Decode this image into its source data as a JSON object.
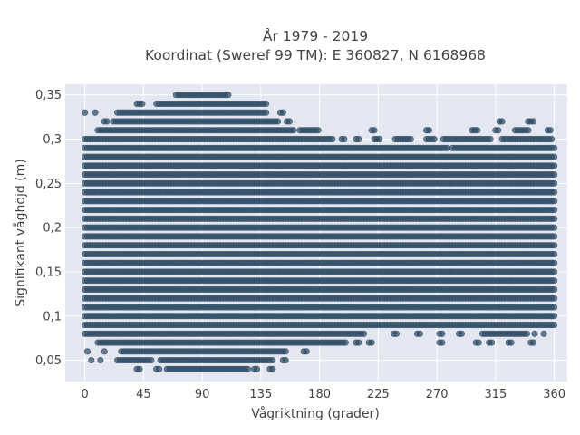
{
  "chart_data": {
    "type": "scatter",
    "title_lines": [
      "År 1979 - 2019",
      "Koordinat (Sweref 99 TM): E 360827, N 6168968"
    ],
    "xlabel": "Vågriktning (grader)",
    "ylabel": "Signifikant våghöjd (m)",
    "xlim": [
      -15,
      370
    ],
    "ylim": [
      0.026,
      0.362
    ],
    "x_ticks": [
      0,
      45,
      90,
      135,
      180,
      225,
      270,
      315,
      360
    ],
    "x_tick_labels": [
      "0",
      "45",
      "90",
      "135",
      "180",
      "225",
      "270",
      "315",
      "360"
    ],
    "y_ticks": [
      0.05,
      0.1,
      0.15,
      0.2,
      0.25,
      0.3,
      0.35
    ],
    "y_tick_labels": [
      "0,05",
      "0,1",
      "0,15",
      "0,2",
      "0,25",
      "0,3",
      "0,35"
    ],
    "grid": true,
    "background_color": "#e5e7f0",
    "marker_color": "#2f4e66",
    "x_step": 2,
    "bands": [
      {
        "y": 0.04,
        "x_ranges": [
          [
            40,
            42
          ],
          [
            55,
            58
          ],
          [
            63,
            125
          ],
          [
            130,
            132
          ],
          [
            142,
            144
          ]
        ]
      },
      {
        "y": 0.05,
        "x_ranges": [
          [
            5,
            6
          ],
          [
            12,
            13
          ],
          [
            25,
            52
          ],
          [
            58,
            145
          ],
          [
            152,
            154
          ]
        ]
      },
      {
        "y": 0.06,
        "x_ranges": [
          [
            2,
            3
          ],
          [
            15,
            16
          ],
          [
            28,
            155
          ],
          [
            168,
            170
          ]
        ]
      },
      {
        "y": 0.07,
        "x_ranges": [
          [
            10,
            200
          ],
          [
            208,
            210
          ],
          [
            218,
            220
          ],
          [
            272,
            274
          ],
          [
            300,
            302
          ],
          [
            310,
            312
          ],
          [
            325,
            327
          ],
          [
            342,
            344
          ]
        ]
      },
      {
        "y": 0.08,
        "x_ranges": [
          [
            0,
            215
          ],
          [
            237,
            239
          ],
          [
            255,
            257
          ],
          [
            272,
            274
          ],
          [
            287,
            289
          ],
          [
            305,
            340
          ],
          [
            345,
            346
          ],
          [
            352,
            353
          ]
        ]
      },
      {
        "y": 0.09,
        "x_ranges": [
          [
            0,
            360
          ]
        ]
      },
      {
        "y": 0.1,
        "x_ranges": [
          [
            0,
            360
          ]
        ]
      },
      {
        "y": 0.11,
        "x_ranges": [
          [
            0,
            360
          ]
        ]
      },
      {
        "y": 0.12,
        "x_ranges": [
          [
            0,
            360
          ]
        ]
      },
      {
        "y": 0.13,
        "x_ranges": [
          [
            0,
            360
          ]
        ]
      },
      {
        "y": 0.14,
        "x_ranges": [
          [
            0,
            360
          ]
        ]
      },
      {
        "y": 0.15,
        "x_ranges": [
          [
            0,
            360
          ]
        ]
      },
      {
        "y": 0.16,
        "x_ranges": [
          [
            0,
            360
          ]
        ]
      },
      {
        "y": 0.17,
        "x_ranges": [
          [
            0,
            360
          ]
        ]
      },
      {
        "y": 0.18,
        "x_ranges": [
          [
            0,
            360
          ]
        ]
      },
      {
        "y": 0.19,
        "x_ranges": [
          [
            0,
            360
          ]
        ]
      },
      {
        "y": 0.2,
        "x_ranges": [
          [
            0,
            360
          ]
        ]
      },
      {
        "y": 0.21,
        "x_ranges": [
          [
            0,
            360
          ]
        ]
      },
      {
        "y": 0.22,
        "x_ranges": [
          [
            0,
            360
          ]
        ]
      },
      {
        "y": 0.23,
        "x_ranges": [
          [
            0,
            360
          ]
        ]
      },
      {
        "y": 0.24,
        "x_ranges": [
          [
            0,
            360
          ]
        ]
      },
      {
        "y": 0.25,
        "x_ranges": [
          [
            0,
            360
          ]
        ]
      },
      {
        "y": 0.26,
        "x_ranges": [
          [
            0,
            360
          ]
        ]
      },
      {
        "y": 0.27,
        "x_ranges": [
          [
            0,
            360
          ]
        ]
      },
      {
        "y": 0.28,
        "x_ranges": [
          [
            0,
            360
          ]
        ]
      },
      {
        "y": 0.29,
        "x_ranges": [
          [
            0,
            278
          ],
          [
            282,
            360
          ]
        ]
      },
      {
        "y": 0.3,
        "x_ranges": [
          [
            0,
            190
          ],
          [
            197,
            200
          ],
          [
            208,
            211
          ],
          [
            222,
            226
          ],
          [
            238,
            250
          ],
          [
            262,
            268
          ],
          [
            275,
            312
          ],
          [
            320,
            358
          ]
        ]
      },
      {
        "y": 0.31,
        "x_ranges": [
          [
            10,
            160
          ],
          [
            165,
            180
          ],
          [
            220,
            222
          ],
          [
            262,
            264
          ],
          [
            297,
            302
          ],
          [
            315,
            318
          ],
          [
            330,
            340
          ],
          [
            355,
            358
          ]
        ]
      },
      {
        "y": 0.32,
        "x_ranges": [
          [
            15,
            18
          ],
          [
            22,
            148
          ],
          [
            155,
            158
          ],
          [
            318,
            320
          ],
          [
            340,
            344
          ]
        ]
      },
      {
        "y": 0.33,
        "x_ranges": [
          [
            0,
            1
          ],
          [
            8,
            9
          ],
          [
            25,
            140
          ],
          [
            150,
            152
          ]
        ]
      },
      {
        "y": 0.34,
        "x_ranges": [
          [
            40,
            45
          ],
          [
            55,
            140
          ]
        ]
      },
      {
        "y": 0.35,
        "x_ranges": [
          [
            70,
            110
          ]
        ]
      }
    ]
  }
}
